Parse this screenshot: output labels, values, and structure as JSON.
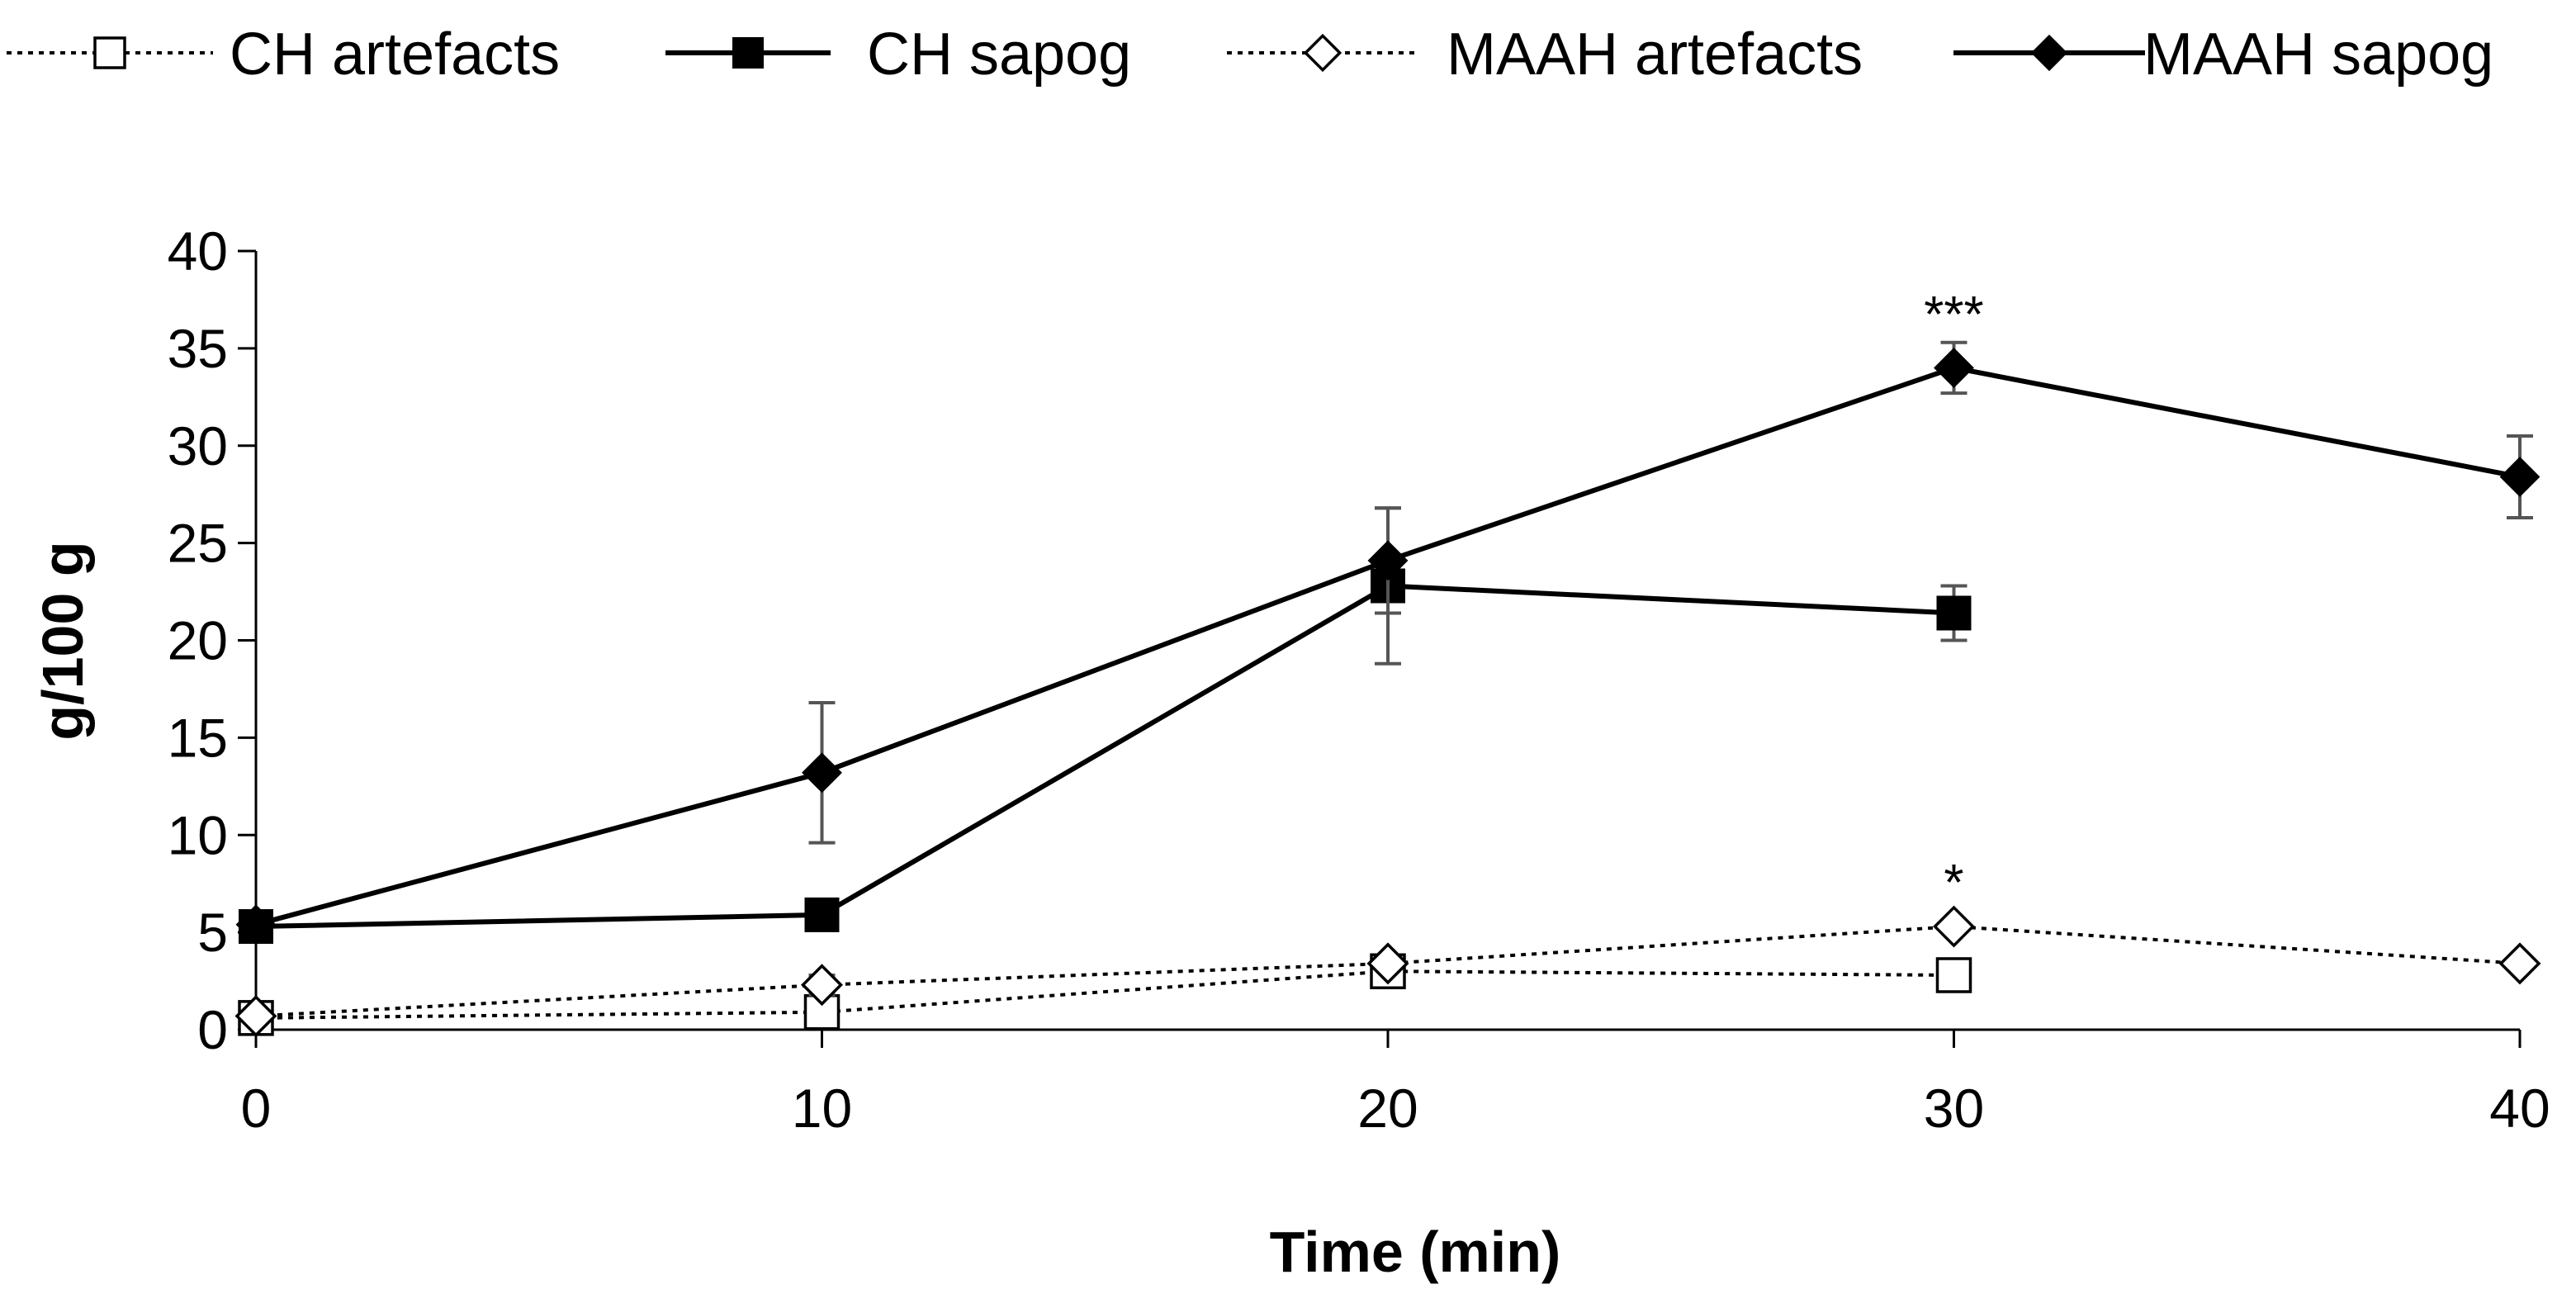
{
  "chart_data": {
    "type": "line",
    "title": "",
    "xlabel": "Time (min)",
    "ylabel": "g/100 g",
    "xlim": [
      0,
      40
    ],
    "ylim": [
      0,
      40
    ],
    "xticks": [
      0,
      10,
      20,
      30,
      40
    ],
    "yticks": [
      0,
      5,
      10,
      15,
      20,
      25,
      30,
      35,
      40
    ],
    "grid": false,
    "legend_position": "top",
    "series": [
      {
        "name": "CH artefacts",
        "line_style": "dotted",
        "marker": "square-open",
        "x": [
          0,
          10,
          20,
          30
        ],
        "values": [
          0.6,
          0.9,
          3.0,
          2.8
        ],
        "errors": [
          0,
          0,
          0,
          0
        ]
      },
      {
        "name": "CH sapog",
        "line_style": "solid",
        "marker": "square-filled",
        "x": [
          0,
          10,
          20,
          30
        ],
        "values": [
          5.3,
          5.9,
          22.8,
          21.4
        ],
        "errors": [
          0,
          0,
          4.0,
          1.4
        ]
      },
      {
        "name": "MAAH artefacts",
        "line_style": "dotted",
        "marker": "diamond-open",
        "x": [
          0,
          10,
          20,
          30,
          40
        ],
        "values": [
          0.7,
          2.3,
          3.4,
          5.3,
          3.4
        ],
        "errors": [
          0,
          0.5,
          0,
          0,
          0
        ]
      },
      {
        "name": "MAAH sapog",
        "line_style": "solid",
        "marker": "diamond-filled",
        "x": [
          0,
          10,
          20,
          30,
          40
        ],
        "values": [
          5.4,
          13.2,
          24.1,
          34.0,
          28.4
        ],
        "errors": [
          0,
          3.6,
          2.7,
          1.3,
          2.1
        ]
      }
    ],
    "annotations": [
      {
        "text": "***",
        "x": 30,
        "y": 36.7
      },
      {
        "text": "*",
        "x": 30,
        "y": 7.5
      }
    ]
  }
}
